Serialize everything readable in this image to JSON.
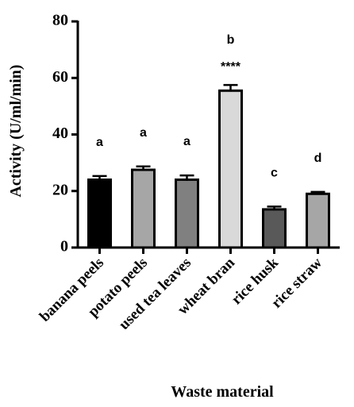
{
  "chart_data": {
    "type": "bar",
    "x_label": "Waste material",
    "y_label": "Activity (U/ml/min)",
    "categories": [
      "banana peels",
      "potato peels",
      "used tea leaves",
      "wheat bran",
      "rice husk",
      "rice straw"
    ],
    "values": [
      24,
      27.5,
      24,
      55.5,
      13.5,
      19
    ],
    "errors": [
      1.3,
      1.2,
      1.5,
      2,
      1,
      0.7
    ],
    "colors": [
      "#000000",
      "#a6a6a6",
      "#808080",
      "#d9d9d9",
      "#595959",
      "#a6a6a6"
    ],
    "annotations": [
      [
        "a"
      ],
      [
        "a"
      ],
      [
        "a"
      ],
      [
        "b",
        "****"
      ],
      [
        "c"
      ],
      [
        "d"
      ]
    ],
    "ylim": [
      0,
      80
    ],
    "yticks": [
      0,
      20,
      40,
      60,
      80
    ]
  }
}
